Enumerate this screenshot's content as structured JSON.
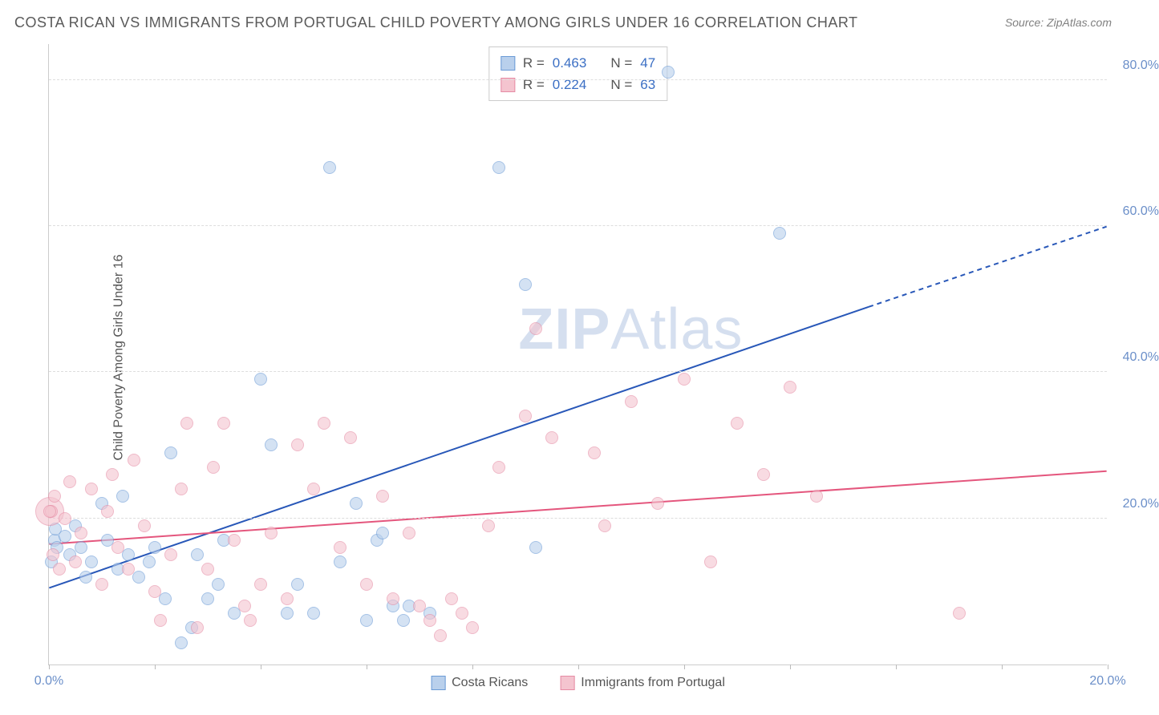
{
  "title": "COSTA RICAN VS IMMIGRANTS FROM PORTUGAL CHILD POVERTY AMONG GIRLS UNDER 16 CORRELATION CHART",
  "source": "Source: ZipAtlas.com",
  "y_axis_label": "Child Poverty Among Girls Under 16",
  "watermark_bold": "ZIP",
  "watermark_rest": "Atlas",
  "chart": {
    "type": "scatter",
    "xlim": [
      0,
      20
    ],
    "ylim": [
      0,
      85
    ],
    "x_ticks": [
      0,
      2,
      4,
      6,
      8,
      10,
      12,
      14,
      16,
      18,
      20
    ],
    "x_tick_labels": {
      "0": "0.0%",
      "20": "20.0%"
    },
    "y_ticks": [
      20,
      40,
      60,
      80
    ],
    "y_tick_labels": {
      "20": "20.0%",
      "40": "40.0%",
      "60": "60.0%",
      "80": "80.0%"
    },
    "background_color": "#ffffff",
    "grid_color": "#dddddd",
    "axis_color": "#cccccc",
    "tick_label_color": "#6b8fc9",
    "axis_label_color": "#555555",
    "point_radius": 8,
    "series": [
      {
        "name": "Costa Ricans",
        "fill": "#b9d0ec",
        "stroke": "#6b9bd6",
        "fill_opacity": 0.6,
        "r_label": "R =",
        "r_value": "0.463",
        "n_label": "N =",
        "n_value": "47",
        "trend": {
          "x1": 0,
          "y1": 10.5,
          "x2": 15.5,
          "y2": 49,
          "x2_dash": 20,
          "y2_dash": 60,
          "color": "#2857b8",
          "width": 2
        },
        "points": [
          [
            0.05,
            14
          ],
          [
            0.1,
            17
          ],
          [
            0.12,
            18.5
          ],
          [
            0.15,
            16
          ],
          [
            0.3,
            17.5
          ],
          [
            0.4,
            15
          ],
          [
            0.5,
            19
          ],
          [
            0.6,
            16
          ],
          [
            0.7,
            12
          ],
          [
            0.8,
            14
          ],
          [
            1.0,
            22
          ],
          [
            1.1,
            17
          ],
          [
            1.3,
            13
          ],
          [
            1.4,
            23
          ],
          [
            1.5,
            15
          ],
          [
            1.7,
            12
          ],
          [
            1.9,
            14
          ],
          [
            2.0,
            16
          ],
          [
            2.2,
            9
          ],
          [
            2.3,
            29
          ],
          [
            2.5,
            3
          ],
          [
            2.7,
            5
          ],
          [
            2.8,
            15
          ],
          [
            3.0,
            9
          ],
          [
            3.2,
            11
          ],
          [
            3.3,
            17
          ],
          [
            3.5,
            7
          ],
          [
            4.0,
            39
          ],
          [
            4.2,
            30
          ],
          [
            4.5,
            7
          ],
          [
            4.7,
            11
          ],
          [
            5.0,
            7
          ],
          [
            5.3,
            68
          ],
          [
            5.5,
            14
          ],
          [
            5.8,
            22
          ],
          [
            6.0,
            6
          ],
          [
            6.2,
            17
          ],
          [
            6.3,
            18
          ],
          [
            6.5,
            8
          ],
          [
            6.7,
            6
          ],
          [
            6.8,
            8
          ],
          [
            8.5,
            68
          ],
          [
            9.0,
            52
          ],
          [
            9.2,
            16
          ],
          [
            11.7,
            81
          ],
          [
            13.8,
            59
          ],
          [
            7.2,
            7
          ]
        ]
      },
      {
        "name": "Immigrants from Portugal",
        "fill": "#f4c4cf",
        "stroke": "#e68ba4",
        "fill_opacity": 0.6,
        "r_label": "R =",
        "r_value": "0.224",
        "n_label": "N =",
        "n_value": "63",
        "trend": {
          "x1": 0,
          "y1": 16.5,
          "x2": 20,
          "y2": 26.5,
          "color": "#e4567d",
          "width": 2
        },
        "points": [
          [
            0.05,
            21
          ],
          [
            0.08,
            15
          ],
          [
            0.1,
            23
          ],
          [
            0.2,
            13
          ],
          [
            0.3,
            20
          ],
          [
            0.4,
            25
          ],
          [
            0.5,
            14
          ],
          [
            0.6,
            18
          ],
          [
            0.8,
            24
          ],
          [
            1.0,
            11
          ],
          [
            1.1,
            21
          ],
          [
            1.2,
            26
          ],
          [
            1.3,
            16
          ],
          [
            1.5,
            13
          ],
          [
            1.6,
            28
          ],
          [
            1.8,
            19
          ],
          [
            2.0,
            10
          ],
          [
            2.1,
            6
          ],
          [
            2.3,
            15
          ],
          [
            2.5,
            24
          ],
          [
            2.6,
            33
          ],
          [
            2.8,
            5
          ],
          [
            3.0,
            13
          ],
          [
            3.1,
            27
          ],
          [
            3.3,
            33
          ],
          [
            3.5,
            17
          ],
          [
            3.7,
            8
          ],
          [
            3.8,
            6
          ],
          [
            4.0,
            11
          ],
          [
            4.2,
            18
          ],
          [
            4.5,
            9
          ],
          [
            4.7,
            30
          ],
          [
            5.0,
            24
          ],
          [
            5.2,
            33
          ],
          [
            5.5,
            16
          ],
          [
            5.7,
            31
          ],
          [
            6.0,
            11
          ],
          [
            6.3,
            23
          ],
          [
            6.5,
            9
          ],
          [
            6.8,
            18
          ],
          [
            7.0,
            8
          ],
          [
            7.2,
            6
          ],
          [
            7.4,
            4
          ],
          [
            7.6,
            9
          ],
          [
            7.8,
            7
          ],
          [
            8.0,
            5
          ],
          [
            8.3,
            19
          ],
          [
            8.5,
            27
          ],
          [
            9.0,
            34
          ],
          [
            9.2,
            46
          ],
          [
            9.5,
            31
          ],
          [
            10.3,
            29
          ],
          [
            10.5,
            19
          ],
          [
            11.0,
            36
          ],
          [
            11.5,
            22
          ],
          [
            12.0,
            39
          ],
          [
            12.5,
            14
          ],
          [
            13.0,
            33
          ],
          [
            13.5,
            26
          ],
          [
            14.0,
            38
          ],
          [
            14.5,
            23
          ],
          [
            17.2,
            7
          ],
          [
            0.02,
            21
          ]
        ],
        "big_point": [
          0.02,
          21,
          18
        ]
      }
    ]
  },
  "legend": {
    "items": [
      {
        "label": "Costa Ricans",
        "fill": "#b9d0ec",
        "stroke": "#6b9bd6"
      },
      {
        "label": "Immigrants from Portugal",
        "fill": "#f4c4cf",
        "stroke": "#e68ba4"
      }
    ]
  }
}
